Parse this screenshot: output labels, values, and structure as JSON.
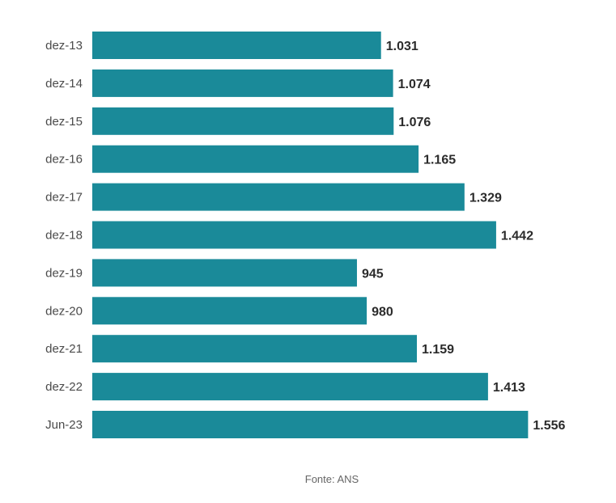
{
  "chart_data": {
    "type": "bar",
    "orientation": "horizontal",
    "categories": [
      "dez-13",
      "dez-14",
      "dez-15",
      "dez-16",
      "dez-17",
      "dez-18",
      "dez-19",
      "dez-20",
      "dez-21",
      "dez-22",
      "Jun-23"
    ],
    "values": [
      1031,
      1074,
      1076,
      1165,
      1329,
      1442,
      945,
      980,
      1159,
      1413,
      1556
    ],
    "value_labels": [
      "1.031",
      "1.074",
      "1.076",
      "1.165",
      "1.329",
      "1.442",
      "945",
      "980",
      "1.159",
      "1.413",
      "1.556"
    ],
    "title": "",
    "xlabel": "",
    "ylabel": "",
    "xlim": [
      0,
      1680
    ],
    "grid": false,
    "legend": "none",
    "bar_color": "#1a8a99"
  },
  "source": "Fonte: ANS"
}
